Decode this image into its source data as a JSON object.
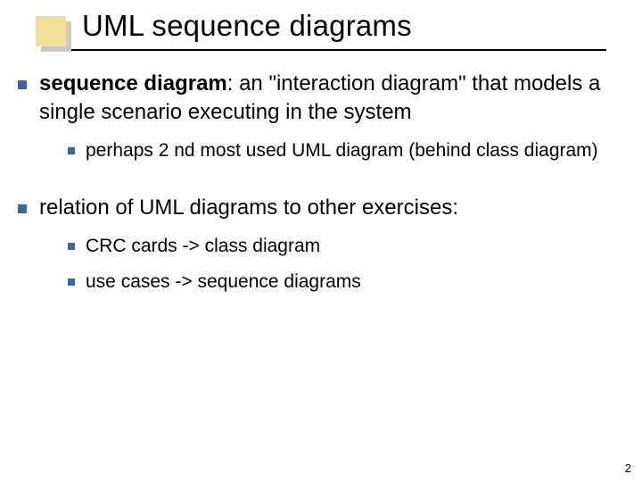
{
  "slide": {
    "title": "UML sequence diagrams",
    "page_number": "2",
    "corner_box_fill": "#f2e09a",
    "corner_box_shadow": "#c8c8c8",
    "bullet_color": "#39679c",
    "underline_color": "#000000",
    "background_color": "#ffffff",
    "title_fontsize": 33,
    "l1_fontsize": 24,
    "l2_fontsize": 21
  },
  "content": {
    "item1": {
      "bold_lead": "sequence diagram",
      "rest": ": an \"interaction diagram\" that models a single scenario executing in the system",
      "sub1": "perhaps 2 nd most used UML diagram (behind class diagram)"
    },
    "item2": {
      "text": "relation of UML diagrams to other exercises:",
      "sub1": "CRC cards -> class diagram",
      "sub2": "use cases -> sequence diagrams"
    }
  }
}
